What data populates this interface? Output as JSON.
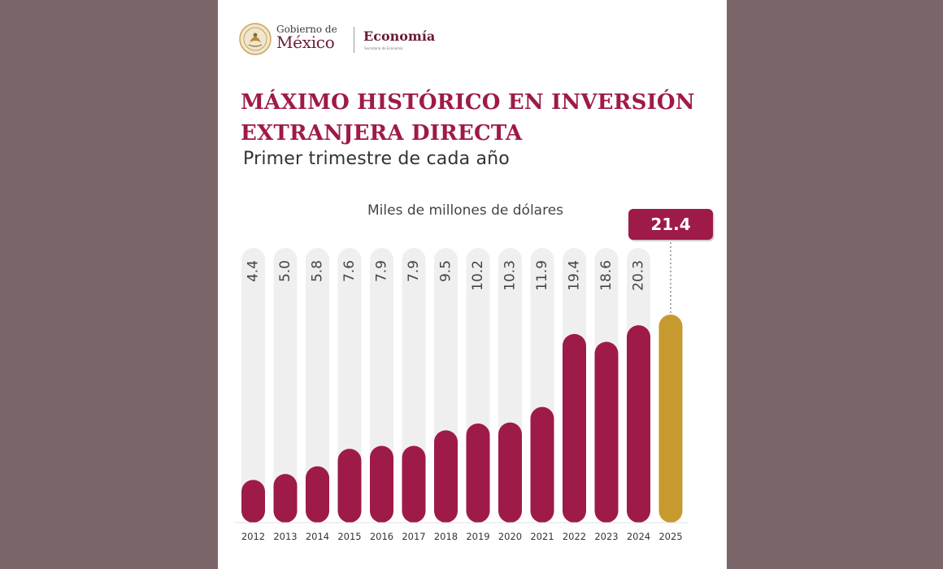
{
  "header": {
    "gobierno": "Gobierno de",
    "mexico": "México",
    "dependencia": "Economía",
    "dependencia_sub": "Secretaría de Economía",
    "seal_icon": "coat-of-arms-seal-icon"
  },
  "colors": {
    "background": "#7a6568",
    "bar": "#9e1a49",
    "highlight": "#c69a2e",
    "track": "#efefef",
    "title": "#9e1a49"
  },
  "chart_data": {
    "type": "bar",
    "title": "MÁXIMO HISTÓRICO EN INVERSIÓN\nEXTRANJERA DIRECTA",
    "subtitle": "Primer trimestre de cada año",
    "ylabel": "Miles de millones de dólares",
    "ylim": [
      0,
      26
    ],
    "categories": [
      "2012",
      "2013",
      "2014",
      "2015",
      "2016",
      "2017",
      "2018",
      "2019",
      "2020",
      "2021",
      "2022",
      "2023",
      "2024",
      "2025"
    ],
    "values": [
      4.4,
      5.0,
      5.8,
      7.6,
      7.9,
      7.9,
      9.5,
      10.2,
      10.3,
      11.9,
      19.4,
      18.6,
      20.3,
      21.4
    ],
    "value_labels": [
      "4.4",
      "5.0",
      "5.8",
      "7.6",
      "7.9",
      "7.9",
      "9.5",
      "10.2",
      "10.3",
      "11.9",
      "19.4",
      "18.6",
      "20.3",
      "21.4"
    ],
    "highlight_category": "2025",
    "grid": false
  }
}
